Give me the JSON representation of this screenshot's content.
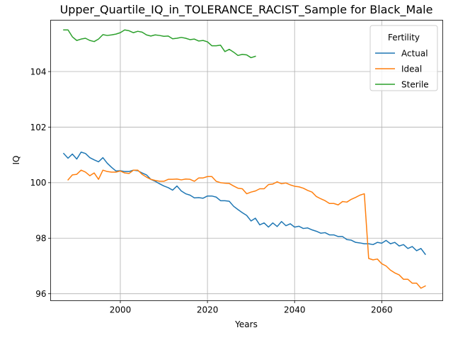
{
  "chart_data": {
    "type": "line",
    "title": "Upper_Quartile_IQ_in_TOLERANCE_RACIST_Sample for Black_Male",
    "xlabel": "Years",
    "ylabel": "IQ",
    "xlim": [
      1984,
      2074
    ],
    "ylim": [
      95.75,
      105.85
    ],
    "xticks": [
      2000,
      2020,
      2040,
      2060
    ],
    "yticks": [
      96,
      98,
      100,
      102,
      104
    ],
    "grid": true,
    "legend": {
      "title": "Fertility",
      "placement": "top-right"
    },
    "series": [
      {
        "name": "Actual",
        "color": "#1f77b4",
        "x": [
          1987,
          1988,
          1989,
          1990,
          1991,
          1992,
          1993,
          1994,
          1995,
          1996,
          1997,
          1998,
          1999,
          2000,
          2001,
          2002,
          2003,
          2004,
          2005,
          2006,
          2007,
          2008,
          2009,
          2010,
          2011,
          2012,
          2013,
          2014,
          2015,
          2016,
          2017,
          2018,
          2019,
          2020,
          2021,
          2022,
          2023,
          2024,
          2025,
          2026,
          2027,
          2028,
          2029,
          2030,
          2031,
          2032,
          2033,
          2034,
          2035,
          2036,
          2037,
          2038,
          2039,
          2040,
          2041,
          2042,
          2043,
          2044,
          2045,
          2046,
          2047,
          2048,
          2049,
          2050,
          2051,
          2052,
          2053,
          2054,
          2055,
          2056,
          2057,
          2058,
          2059,
          2060,
          2061,
          2062,
          2063,
          2064,
          2065,
          2066,
          2067,
          2068,
          2069,
          2070
        ],
        "y": [
          101.05,
          100.88,
          101.03,
          100.85,
          101.1,
          101.05,
          100.9,
          100.82,
          100.75,
          100.9,
          100.7,
          100.55,
          100.42,
          100.43,
          100.4,
          100.4,
          100.45,
          100.43,
          100.35,
          100.28,
          100.12,
          100.05,
          99.96,
          99.88,
          99.82,
          99.73,
          99.88,
          99.7,
          99.6,
          99.55,
          99.45,
          99.46,
          99.44,
          99.52,
          99.52,
          99.48,
          99.35,
          99.35,
          99.33,
          99.15,
          99.03,
          98.92,
          98.82,
          98.62,
          98.72,
          98.48,
          98.55,
          98.4,
          98.55,
          98.42,
          98.6,
          98.45,
          98.52,
          98.4,
          98.43,
          98.35,
          98.37,
          98.3,
          98.25,
          98.18,
          98.2,
          98.12,
          98.12,
          98.06,
          98.06,
          97.95,
          97.93,
          97.85,
          97.83,
          97.8,
          97.8,
          97.77,
          97.85,
          97.82,
          97.92,
          97.8,
          97.85,
          97.72,
          97.77,
          97.63,
          97.7,
          97.55,
          97.63,
          97.42
        ]
      },
      {
        "name": "Ideal",
        "color": "#ff7f0e",
        "x": [
          1988,
          1989,
          1990,
          1991,
          1992,
          1993,
          1994,
          1995,
          1996,
          1997,
          1998,
          1999,
          2000,
          2001,
          2002,
          2003,
          2004,
          2005,
          2006,
          2007,
          2008,
          2009,
          2010,
          2011,
          2012,
          2013,
          2014,
          2015,
          2016,
          2017,
          2018,
          2019,
          2020,
          2021,
          2022,
          2023,
          2024,
          2025,
          2026,
          2027,
          2028,
          2029,
          2030,
          2031,
          2032,
          2033,
          2034,
          2035,
          2036,
          2037,
          2038,
          2039,
          2040,
          2041,
          2042,
          2043,
          2044,
          2045,
          2046,
          2047,
          2048,
          2049,
          2050,
          2051,
          2052,
          2053,
          2054,
          2055,
          2056,
          2057,
          2058,
          2059,
          2060,
          2061,
          2062,
          2063,
          2064,
          2065,
          2066,
          2067,
          2068,
          2069,
          2070
        ],
        "y": [
          100.1,
          100.28,
          100.3,
          100.45,
          100.38,
          100.25,
          100.35,
          100.12,
          100.45,
          100.4,
          100.38,
          100.38,
          100.42,
          100.35,
          100.33,
          100.45,
          100.45,
          100.3,
          100.2,
          100.12,
          100.08,
          100.05,
          100.05,
          100.12,
          100.12,
          100.13,
          100.1,
          100.13,
          100.12,
          100.05,
          100.17,
          100.17,
          100.22,
          100.22,
          100.05,
          100.0,
          99.98,
          99.97,
          99.88,
          99.8,
          99.78,
          99.6,
          99.66,
          99.7,
          99.78,
          99.78,
          99.93,
          99.95,
          100.03,
          99.96,
          99.99,
          99.92,
          99.87,
          99.85,
          99.8,
          99.72,
          99.66,
          99.5,
          99.42,
          99.35,
          99.25,
          99.25,
          99.2,
          99.32,
          99.3,
          99.4,
          99.47,
          99.55,
          99.6,
          97.27,
          97.22,
          97.25,
          97.08,
          97.0,
          96.85,
          96.75,
          96.68,
          96.52,
          96.52,
          96.38,
          96.38,
          96.2,
          96.28
        ]
      },
      {
        "name": "Sterile",
        "color": "#2ca02c",
        "x": [
          1987,
          1988,
          1989,
          1990,
          1991,
          1992,
          1993,
          1994,
          1995,
          1996,
          1997,
          1998,
          1999,
          2000,
          2001,
          2002,
          2003,
          2004,
          2005,
          2006,
          2007,
          2008,
          2009,
          2010,
          2011,
          2012,
          2013,
          2014,
          2015,
          2016,
          2017,
          2018,
          2019,
          2020,
          2021,
          2022,
          2023,
          2024,
          2025,
          2026,
          2027,
          2028,
          2029,
          2030,
          2031
        ],
        "y": [
          105.5,
          105.5,
          105.25,
          105.12,
          105.17,
          105.2,
          105.12,
          105.08,
          105.17,
          105.33,
          105.3,
          105.32,
          105.35,
          105.4,
          105.5,
          105.47,
          105.4,
          105.45,
          105.42,
          105.32,
          105.28,
          105.32,
          105.3,
          105.27,
          105.28,
          105.18,
          105.2,
          105.23,
          105.2,
          105.15,
          105.17,
          105.1,
          105.12,
          105.07,
          104.93,
          104.93,
          104.95,
          104.72,
          104.8,
          104.7,
          104.58,
          104.62,
          104.6,
          104.5,
          104.55
        ]
      }
    ]
  }
}
